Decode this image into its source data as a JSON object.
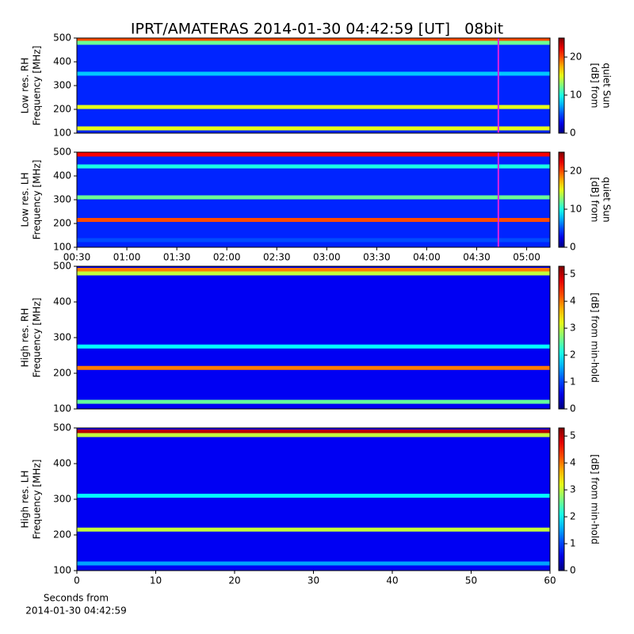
{
  "chart_data": [
    {
      "type": "heatmap",
      "title": "IPRT/AMATERAS 2014-01-30 04:42:59 [UT]   08bit",
      "ylabel": [
        "Low res. RH",
        "Frequency [MHz]"
      ],
      "ylim": [
        100,
        500
      ],
      "yticks": [
        100,
        200,
        300,
        400,
        500
      ],
      "xlim": [
        30,
        314
      ],
      "marker": 283,
      "marker_color": "#e020e0",
      "background": 4,
      "bands": [
        {
          "freq": 490,
          "level": 20
        },
        {
          "freq": 480,
          "level": 12
        },
        {
          "freq": 350,
          "level": 8
        },
        {
          "freq": 210,
          "level": 15
        },
        {
          "freq": 120,
          "level": 15
        }
      ],
      "colorbar": {
        "label": [
          "[dB] from",
          "quiet Sun"
        ],
        "lim": [
          0,
          25
        ],
        "ticks": [
          0,
          10,
          20
        ]
      }
    },
    {
      "type": "heatmap",
      "ylabel": [
        "Low res. LH",
        "Frequency [MHz]"
      ],
      "ylim": [
        100,
        500
      ],
      "yticks": [
        100,
        200,
        300,
        400,
        500
      ],
      "xlim": [
        30,
        314
      ],
      "marker": 283,
      "marker_color": "#e020e0",
      "xticks": [
        {
          "value": 30,
          "label": "00:30"
        },
        {
          "value": 60,
          "label": "01:00"
        },
        {
          "value": 90,
          "label": "01:30"
        },
        {
          "value": 120,
          "label": "02:00"
        },
        {
          "value": 150,
          "label": "02:30"
        },
        {
          "value": 180,
          "label": "03:00"
        },
        {
          "value": 210,
          "label": "03:30"
        },
        {
          "value": 240,
          "label": "04:00"
        },
        {
          "value": 270,
          "label": "04:30"
        },
        {
          "value": 300,
          "label": "05:00"
        }
      ],
      "background": 4,
      "bands": [
        {
          "freq": 490,
          "level": 22
        },
        {
          "freq": 440,
          "level": 10
        },
        {
          "freq": 310,
          "level": 12
        },
        {
          "freq": 215,
          "level": 20
        },
        {
          "freq": 130,
          "level": 5
        }
      ],
      "colorbar": {
        "label": [
          "[dB] from",
          "quiet Sun"
        ],
        "lim": [
          0,
          25
        ],
        "ticks": [
          0,
          10,
          20
        ]
      }
    },
    {
      "type": "heatmap",
      "ylabel": [
        "High res. RH",
        "Frequency [MHz]"
      ],
      "ylim": [
        100,
        500
      ],
      "yticks": [
        100,
        200,
        300,
        400,
        500
      ],
      "xlim": [
        0,
        60
      ],
      "background": 0.6,
      "bands": [
        {
          "freq": 490,
          "level": 4
        },
        {
          "freq": 480,
          "level": 3
        },
        {
          "freq": 275,
          "level": 2
        },
        {
          "freq": 215,
          "level": 4
        },
        {
          "freq": 120,
          "level": 2.5
        }
      ],
      "colorbar": {
        "label": [
          "[dB] from min-hold"
        ],
        "lim": [
          0,
          5.3
        ],
        "ticks": [
          0,
          1,
          2,
          3,
          4,
          5
        ]
      }
    },
    {
      "type": "heatmap",
      "ylabel": [
        "High res. LH",
        "Frequency [MHz]"
      ],
      "ylim": [
        100,
        500
      ],
      "yticks": [
        100,
        200,
        300,
        400,
        500
      ],
      "xlim": [
        0,
        60
      ],
      "xticks": [
        0,
        10,
        20,
        30,
        40,
        50,
        60
      ],
      "xlabel": [
        "Seconds from",
        "2014-01-30 04:42:59"
      ],
      "background": 0.6,
      "bands": [
        {
          "freq": 490,
          "level": 5
        },
        {
          "freq": 480,
          "level": 3
        },
        {
          "freq": 310,
          "level": 2
        },
        {
          "freq": 215,
          "level": 3
        },
        {
          "freq": 120,
          "level": 1.5
        }
      ],
      "colorbar": {
        "label": [
          "[dB] from min-hold"
        ],
        "lim": [
          0,
          5.3
        ],
        "ticks": [
          0,
          1,
          2,
          3,
          4,
          5
        ]
      }
    }
  ]
}
